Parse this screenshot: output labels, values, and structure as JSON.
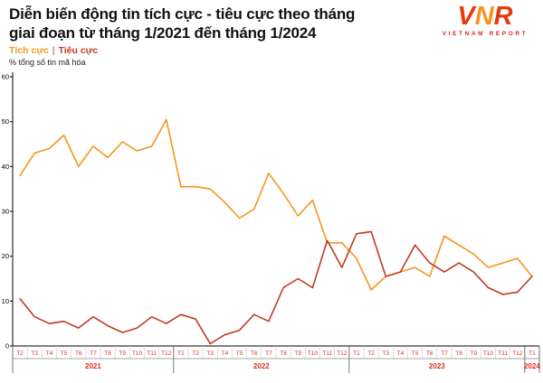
{
  "header": {
    "title_line1": "Diễn biến động tin tích cực - tiêu cực theo tháng",
    "title_line2": "giai đoạn từ tháng 1/2021 đến tháng 1/2024"
  },
  "logo": {
    "letters": [
      "V",
      "N",
      "R"
    ],
    "subtext": "VIETNAM REPORT"
  },
  "legend": {
    "positive": "Tích cực",
    "separator": "|",
    "negative": "Tiêu cực"
  },
  "chart_data": {
    "type": "line",
    "title": "Diễn biến động tin tích cực - tiêu cực theo tháng giai đoạn từ tháng 1/2021 đến tháng 1/2024",
    "ylabel": "% tổng số tin mã hóa",
    "xlabel": "",
    "ylim": [
      0,
      60
    ],
    "yticks": [
      0,
      10,
      20,
      30,
      40,
      50,
      60
    ],
    "grid": false,
    "legend_position": "top-left",
    "axis_label_color": "#e02d1d",
    "axis_line_color": "#000000",
    "categories": [
      "T2",
      "T3",
      "T4",
      "T5",
      "T6",
      "T7",
      "T8",
      "T9",
      "T10",
      "T11",
      "T12",
      "T1",
      "T2",
      "T3",
      "T4",
      "T5",
      "T6",
      "T7",
      "T8",
      "T9",
      "T10",
      "T11",
      "T12",
      "T1",
      "T2",
      "T3",
      "T4",
      "T5",
      "T6",
      "T7",
      "T8",
      "T9",
      "T10",
      "T11",
      "T12",
      "T1"
    ],
    "year_groups": [
      {
        "year": "2021",
        "count": 11
      },
      {
        "year": "2022",
        "count": 12
      },
      {
        "year": "2023",
        "count": 12
      },
      {
        "year": "2024",
        "count": 1
      }
    ],
    "series": [
      {
        "name": "Tích cực",
        "color": "#f7941d",
        "values": [
          38,
          43,
          44,
          47,
          40,
          44.5,
          42,
          45.5,
          43.5,
          44.5,
          50.5,
          35.5,
          35.5,
          35,
          32,
          28.5,
          30.5,
          38.5,
          34,
          29,
          32.5,
          23,
          23,
          19.5,
          12.5,
          15.5,
          16.5,
          17.5,
          15.5,
          24.5,
          22.5,
          20.5,
          17.5,
          18.5,
          19.5,
          15.5
        ]
      },
      {
        "name": "Tiêu cực",
        "color": "#c13a20",
        "values": [
          10.5,
          6.5,
          5,
          5.5,
          4,
          6.5,
          4.5,
          3,
          4,
          6.5,
          5,
          7,
          6,
          0.5,
          2.5,
          3.5,
          7,
          5.5,
          13,
          15,
          13,
          23.5,
          17.5,
          25,
          25.5,
          15.5,
          16.5,
          22.5,
          18.5,
          16.5,
          18.5,
          16.5,
          13,
          11.5,
          12,
          15.5
        ]
      }
    ]
  }
}
